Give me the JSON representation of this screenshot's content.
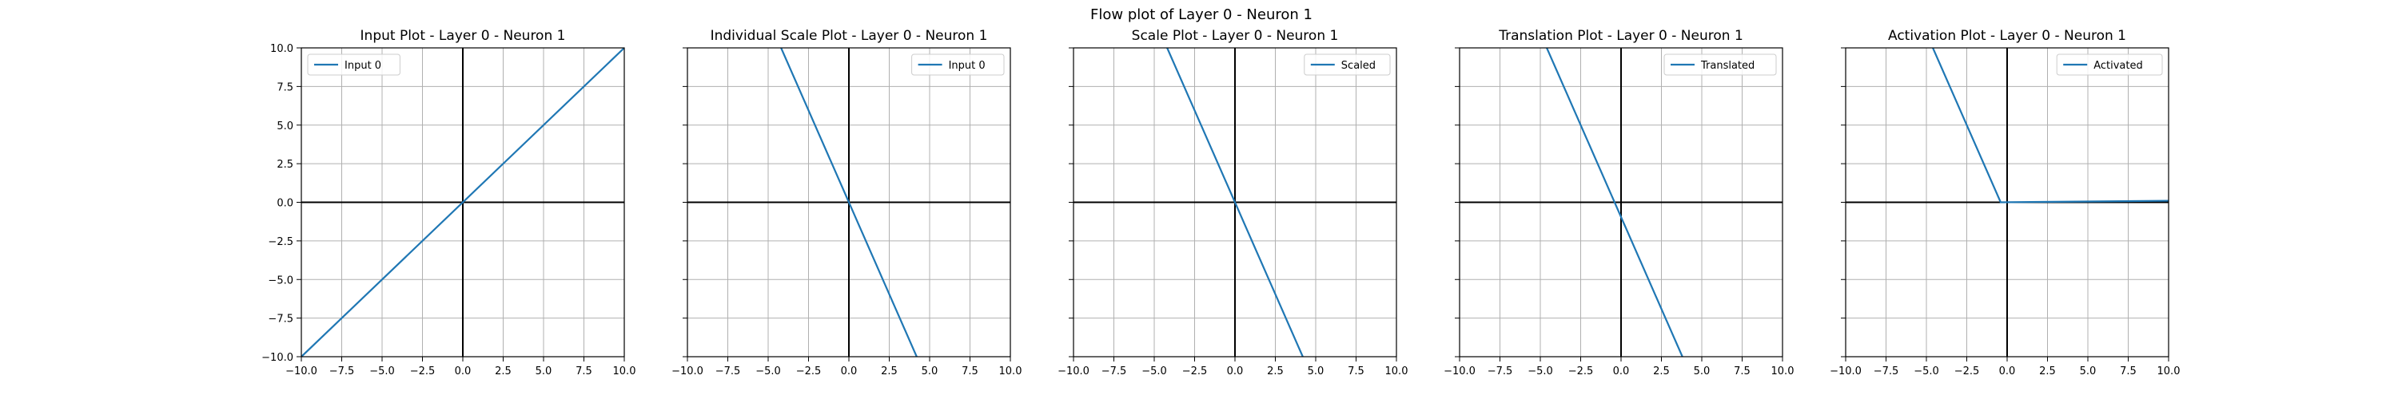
{
  "figure": {
    "suptitle": "Flow plot of Layer 0 - Neuron 1"
  },
  "chart_data": [
    {
      "type": "line",
      "title": "Input Plot - Layer 0 - Neuron 1",
      "xlim": [
        -10,
        10
      ],
      "ylim": [
        -10,
        10
      ],
      "xticks": [
        "−10.0",
        "−7.5",
        "−5.0",
        "−2.5",
        "0.0",
        "2.5",
        "5.0",
        "7.5",
        "10.0"
      ],
      "yticks": [
        "−10.0",
        "−7.5",
        "−5.0",
        "−2.5",
        "0.0",
        "2.5",
        "5.0",
        "7.5",
        "10.0"
      ],
      "grid": true,
      "legend_position": "upper-left",
      "series": [
        {
          "name": "Input 0",
          "color": "#1f77b4",
          "x": [
            -10,
            10
          ],
          "y": [
            -10,
            10
          ]
        }
      ]
    },
    {
      "type": "line",
      "title": "Individual Scale Plot - Layer 0 - Neuron 1",
      "xlim": [
        -10,
        10
      ],
      "ylim": [
        -10,
        10
      ],
      "xticks": [
        "−10.0",
        "−7.5",
        "−5.0",
        "−2.5",
        "0.0",
        "2.5",
        "5.0",
        "7.5",
        "10.0"
      ],
      "grid": true,
      "legend_position": "upper-right",
      "series": [
        {
          "name": "Input 0",
          "color": "#1f77b4",
          "x": [
            -4.2,
            4.2
          ],
          "y": [
            10,
            -10
          ]
        }
      ]
    },
    {
      "type": "line",
      "title": "Scale Plot - Layer 0 - Neuron 1",
      "xlim": [
        -10,
        10
      ],
      "ylim": [
        -10,
        10
      ],
      "xticks": [
        "−10.0",
        "−7.5",
        "−5.0",
        "−2.5",
        "0.0",
        "2.5",
        "5.0",
        "7.5",
        "10.0"
      ],
      "grid": true,
      "legend_position": "upper-right",
      "series": [
        {
          "name": "Scaled",
          "color": "#1f77b4",
          "x": [
            -4.2,
            4.2
          ],
          "y": [
            10,
            -10
          ]
        }
      ]
    },
    {
      "type": "line",
      "title": "Translation Plot - Layer 0 - Neuron 1",
      "xlim": [
        -10,
        10
      ],
      "ylim": [
        -10,
        10
      ],
      "xticks": [
        "−10.0",
        "−7.5",
        "−5.0",
        "−2.5",
        "0.0",
        "2.5",
        "5.0",
        "7.5",
        "10.0"
      ],
      "grid": true,
      "legend_position": "upper-right",
      "series": [
        {
          "name": "Translated",
          "color": "#1f77b4",
          "x": [
            -4.6,
            3.8
          ],
          "y": [
            10,
            -10
          ]
        }
      ]
    },
    {
      "type": "line",
      "title": "Activation Plot - Layer 0 - Neuron 1",
      "xlim": [
        -10,
        10
      ],
      "ylim": [
        -10,
        10
      ],
      "xticks": [
        "−10.0",
        "−7.5",
        "−5.0",
        "−2.5",
        "0.0",
        "2.5",
        "5.0",
        "7.5",
        "10.0"
      ],
      "grid": true,
      "legend_position": "upper-right",
      "series": [
        {
          "name": "Activated",
          "color": "#1f77b4",
          "x": [
            -4.6,
            -0.4,
            10
          ],
          "y": [
            10,
            0,
            0.1
          ]
        }
      ]
    }
  ]
}
